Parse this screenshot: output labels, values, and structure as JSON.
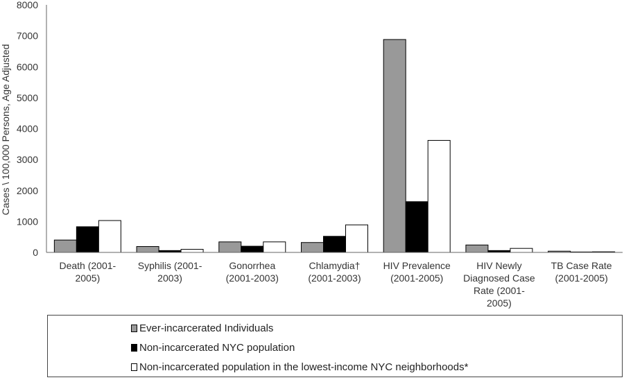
{
  "chart_data": {
    "type": "bar",
    "ylabel": "Cases \\ 100,000 Persons, Age Adjusted",
    "ylim": [
      0,
      8000
    ],
    "yticks": [
      0,
      1000,
      2000,
      3000,
      4000,
      5000,
      6000,
      7000,
      8000
    ],
    "grid": false,
    "legend_position": "bottom",
    "categories": [
      [
        "Death (2001-",
        "2005)"
      ],
      [
        "Syphilis (2001-",
        "2003)"
      ],
      [
        "Gonorrhea",
        "(2001-2003)"
      ],
      [
        "Chlamydia†",
        "(2001-2003)"
      ],
      [
        "HIV Prevalence",
        "(2001-2005)"
      ],
      [
        "HIV Newly",
        "Diagnosed Case",
        "Rate (2001-",
        "2005)"
      ],
      [
        "TB Case Rate",
        "(2001-2005)"
      ]
    ],
    "series": [
      {
        "name": "Ever-incarcerated Individuals",
        "color": "#999999",
        "values": [
          400,
          190,
          340,
          320,
          6880,
          240,
          40
        ]
      },
      {
        "name": "Non-incarcerated NYC population",
        "color": "#000000",
        "values": [
          830,
          60,
          200,
          520,
          1640,
          60,
          15
        ]
      },
      {
        "name": "Non-incarcerated population in the lowest-income NYC neighborhoods*",
        "color": "#ffffff",
        "values": [
          1030,
          100,
          340,
          890,
          3620,
          130,
          20
        ]
      }
    ]
  }
}
